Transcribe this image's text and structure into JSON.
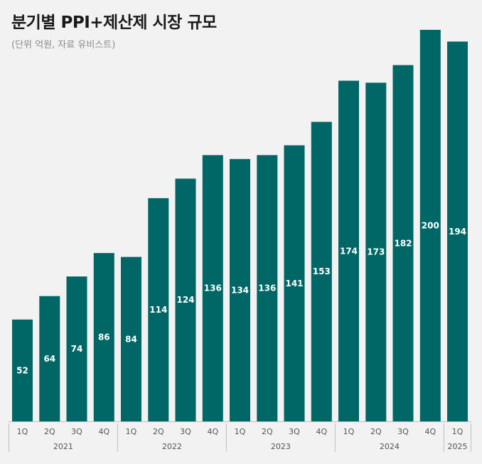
{
  "header": {
    "title": "분기별 PPI+제산제 시장 규모",
    "subtitle": "(단위 억원, 자료 유비스트)"
  },
  "colors": {
    "bar": "#006766",
    "background": "#f2f2f2",
    "axis_line": "#bdbdbd"
  },
  "chart_data": {
    "type": "bar",
    "title": "분기별 PPI+제산제 시장 규모",
    "subtitle": "(단위 억원, 자료 유비스트)",
    "categories": [
      "1Q",
      "2Q",
      "3Q",
      "4Q",
      "1Q",
      "2Q",
      "3Q",
      "4Q",
      "1Q",
      "2Q",
      "3Q",
      "4Q",
      "1Q",
      "2Q",
      "3Q",
      "4Q",
      "1Q"
    ],
    "years": [
      {
        "label": "2021",
        "count": 4
      },
      {
        "label": "2022",
        "count": 4
      },
      {
        "label": "2023",
        "count": 4
      },
      {
        "label": "2024",
        "count": 4
      },
      {
        "label": "2025",
        "count": 1
      }
    ],
    "values": [
      52,
      64,
      74,
      86,
      84,
      114,
      124,
      136,
      134,
      136,
      141,
      153,
      174,
      173,
      182,
      200,
      194
    ],
    "ylim": [
      0,
      200
    ],
    "grid": false,
    "xlabel": "",
    "ylabel": ""
  }
}
